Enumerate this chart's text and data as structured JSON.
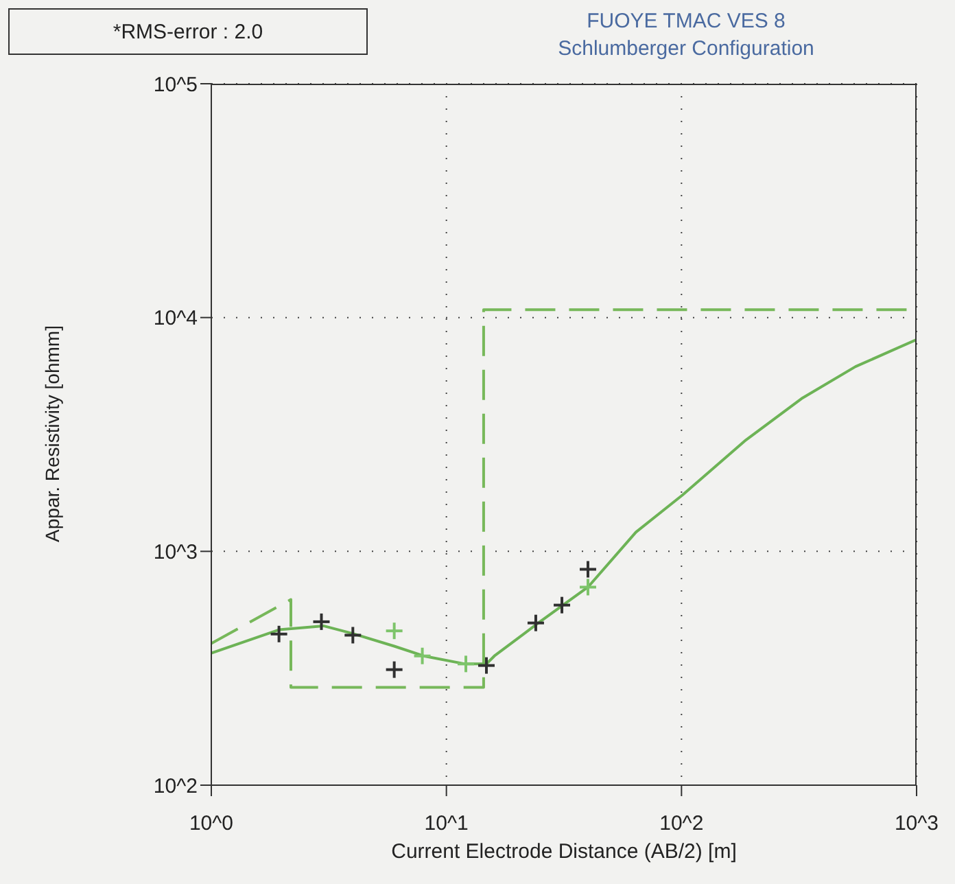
{
  "chart_data": {
    "type": "line",
    "title": "FUOYE TMAC VES 8",
    "subtitle": "Schlumberger Configuration",
    "xlabel": "Current Electrode Distance (AB/2) [m]",
    "ylabel": "Appar. Resistivity [ohmm]",
    "annotations": [
      "*RMS-error :  2.0"
    ],
    "log": "xy",
    "grid": true,
    "xlim": [
      1,
      1000
    ],
    "xticks": [
      {
        "value": 1,
        "label": "10^0"
      },
      {
        "value": 10,
        "label": "10^1"
      },
      {
        "value": 100,
        "label": "10^2"
      },
      {
        "value": 1000,
        "label": "10^3"
      }
    ],
    "ylim": [
      100,
      100000
    ],
    "yticks": [
      {
        "value": 100,
        "label": "10^2"
      },
      {
        "value": 1000,
        "label": "10^3"
      },
      {
        "value": 10000,
        "label": "10^4"
      },
      {
        "value": 100000,
        "label": "10^5"
      }
    ],
    "series": [
      {
        "type": "line",
        "line_style": "dashed",
        "marker": "none",
        "color": "#77b85a",
        "x": [
          1,
          2.18,
          2.18,
          14.4,
          14.4,
          1000
        ],
        "values": [
          404,
          622,
          262,
          262,
          10800,
          10800
        ]
      },
      {
        "line_style": "solid",
        "marker": "none",
        "color": "#6db356",
        "x": [
          1,
          1.94,
          3,
          4,
          6,
          8,
          12,
          14.8,
          16,
          24.6,
          31.4,
          40,
          64,
          101,
          188,
          324,
          550,
          1000
        ],
        "values": [
          367,
          462,
          480,
          445,
          393,
          357,
          330,
          330,
          357,
          494,
          590,
          703,
          1208,
          1742,
          2994,
          4500,
          6170,
          8050
        ]
      },
      {
        "type": "scatter",
        "marker": "cross",
        "color": "#303030",
        "x": [
          1.94,
          2.94,
          4,
          6,
          14.8,
          24,
          31,
          40
        ],
        "values": [
          443,
          500,
          438,
          312,
          325,
          494,
          589,
          838
        ]
      },
      {
        "type": "scatter",
        "marker": "cross",
        "color": "#7dc46a",
        "x": [
          6,
          7.9,
          12.1,
          40
        ],
        "values": [
          457,
          357,
          330,
          703
        ]
      }
    ]
  }
}
